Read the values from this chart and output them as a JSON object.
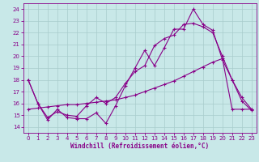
{
  "xlabel": "Windchill (Refroidissement éolien,°C)",
  "xlim": [
    -0.5,
    23.5
  ],
  "ylim": [
    13.5,
    24.5
  ],
  "yticks": [
    14,
    15,
    16,
    17,
    18,
    19,
    20,
    21,
    22,
    23,
    24
  ],
  "xticks": [
    0,
    1,
    2,
    3,
    4,
    5,
    6,
    7,
    8,
    9,
    10,
    11,
    12,
    13,
    14,
    15,
    16,
    17,
    18,
    19,
    20,
    21,
    22,
    23
  ],
  "background_color": "#c8e8e8",
  "grid_color": "#a8cccc",
  "line_color": "#880088",
  "line1_y": [
    18.0,
    16.0,
    14.6,
    15.5,
    14.8,
    14.7,
    14.7,
    15.2,
    14.3,
    15.8,
    17.5,
    19.0,
    20.5,
    19.2,
    20.7,
    22.3,
    22.3,
    24.0,
    22.7,
    22.2,
    19.7,
    18.0,
    16.2,
    15.4
  ],
  "line2_y": [
    18.0,
    16.0,
    14.8,
    15.3,
    15.0,
    14.9,
    15.8,
    16.5,
    16.0,
    16.5,
    17.7,
    18.7,
    19.2,
    20.9,
    21.5,
    21.8,
    22.7,
    22.8,
    22.5,
    22.0,
    20.0,
    18.0,
    16.5,
    15.5
  ],
  "line3_y": [
    15.5,
    15.6,
    15.7,
    15.8,
    15.9,
    15.9,
    16.0,
    16.1,
    16.2,
    16.3,
    16.5,
    16.7,
    17.0,
    17.3,
    17.6,
    17.9,
    18.3,
    18.7,
    19.1,
    19.5,
    19.8,
    15.5,
    15.5,
    15.5
  ]
}
